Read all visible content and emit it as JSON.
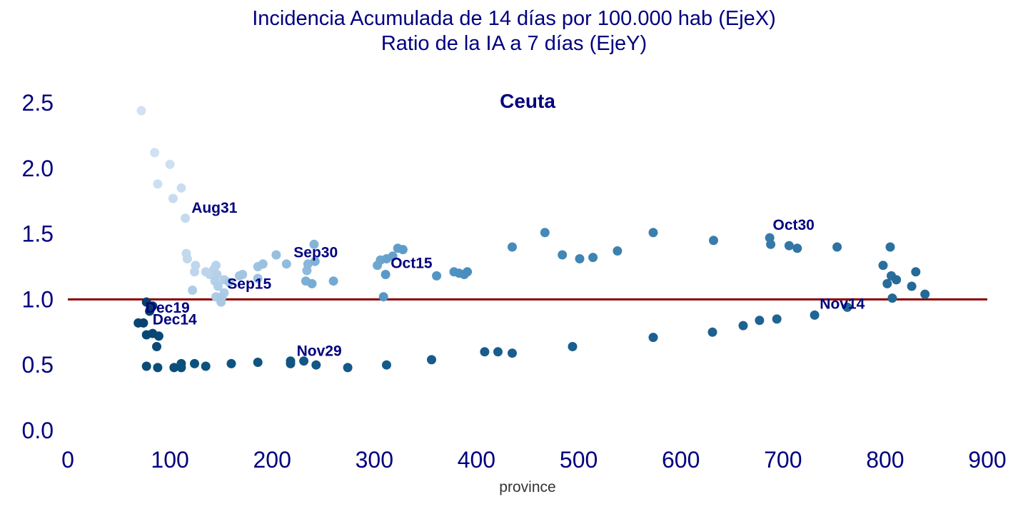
{
  "chart_data": {
    "type": "scatter",
    "title_lines": [
      "Incidencia Acumulada de 14 días por 100.000 hab (EjeX)",
      "Ratio de la IA a 7 días (EjeY)"
    ],
    "subtitle": "Ceuta",
    "xlabel": "province",
    "ylabel": "",
    "xlim": [
      0,
      900
    ],
    "ylim": [
      0,
      2.65
    ],
    "x_ticks": [
      0,
      100,
      200,
      300,
      400,
      500,
      600,
      700,
      800,
      900
    ],
    "y_ticks": [
      0.0,
      0.5,
      1.0,
      1.5,
      2.0,
      2.5
    ],
    "y_tick_labels": [
      "0.0",
      "0.5",
      "1.0",
      "1.5",
      "2.0",
      "2.5"
    ],
    "grid": false,
    "reference_line": {
      "y": 1.0,
      "color": "#8b0000"
    },
    "colors": {
      "text": "#000080",
      "early": "#c6dbef",
      "mid": "#4a98c9",
      "late": "#1764ab",
      "latest": "#08306b"
    },
    "points": [
      {
        "x": 72,
        "y": 2.44,
        "c": "#d1e2f3"
      },
      {
        "x": 85,
        "y": 2.12,
        "c": "#cfe1f2"
      },
      {
        "x": 100,
        "y": 2.03,
        "c": "#cde0f1"
      },
      {
        "x": 88,
        "y": 1.88,
        "c": "#cbdff1"
      },
      {
        "x": 111,
        "y": 1.85,
        "c": "#c9ddf0"
      },
      {
        "x": 103,
        "y": 1.77,
        "c": "#c7dcef"
      },
      {
        "x": 115,
        "y": 1.62,
        "c": "#c5daee"
      },
      {
        "x": 116,
        "y": 1.35,
        "c": "#c3d9ee"
      },
      {
        "x": 117,
        "y": 1.31,
        "c": "#c1d8ed"
      },
      {
        "x": 125,
        "y": 1.26,
        "c": "#bfd7ed"
      },
      {
        "x": 124,
        "y": 1.21,
        "c": "#bed6ec"
      },
      {
        "x": 135,
        "y": 1.21,
        "c": "#bcd5ec"
      },
      {
        "x": 139,
        "y": 1.19,
        "c": "#bad4eb"
      },
      {
        "x": 145,
        "y": 1.26,
        "c": "#b8d3eb"
      },
      {
        "x": 143,
        "y": 1.23,
        "c": "#b7d2ea"
      },
      {
        "x": 146,
        "y": 1.19,
        "c": "#b5d1e9"
      },
      {
        "x": 144,
        "y": 1.14,
        "c": "#b3d0e9"
      },
      {
        "x": 153,
        "y": 1.15,
        "c": "#b1cfe8"
      },
      {
        "x": 147,
        "y": 1.1,
        "c": "#b0cee8"
      },
      {
        "x": 122,
        "y": 1.07,
        "c": "#aecde7"
      },
      {
        "x": 153,
        "y": 1.05,
        "c": "#accce7"
      },
      {
        "x": 145,
        "y": 1.02,
        "c": "#abcbe6"
      },
      {
        "x": 151,
        "y": 1.02,
        "c": "#a9cae6"
      },
      {
        "x": 150,
        "y": 0.98,
        "c": "#a7c9e5"
      },
      {
        "x": 158,
        "y": 1.13,
        "c": "#a5c8e4"
      },
      {
        "x": 168,
        "y": 1.18,
        "c": "#a3c6e3"
      },
      {
        "x": 171,
        "y": 1.19,
        "c": "#a1c5e2"
      },
      {
        "x": 186,
        "y": 1.25,
        "c": "#9fc4e1"
      },
      {
        "x": 186,
        "y": 1.16,
        "c": "#9dc3e0"
      },
      {
        "x": 191,
        "y": 1.27,
        "c": "#9ac1df"
      },
      {
        "x": 204,
        "y": 1.34,
        "c": "#96bfde"
      },
      {
        "x": 214,
        "y": 1.27,
        "c": "#92bcdc"
      },
      {
        "x": 234,
        "y": 1.22,
        "c": "#8db9db"
      },
      {
        "x": 235,
        "y": 1.27,
        "c": "#89b6d9"
      },
      {
        "x": 241,
        "y": 1.42,
        "c": "#84b4d8"
      },
      {
        "x": 242,
        "y": 1.29,
        "c": "#80b1d6"
      },
      {
        "x": 233,
        "y": 1.14,
        "c": "#7cafd5"
      },
      {
        "x": 239,
        "y": 1.12,
        "c": "#78acd3"
      },
      {
        "x": 260,
        "y": 1.14,
        "c": "#74aad2"
      },
      {
        "x": 303,
        "y": 1.26,
        "c": "#70a7d0"
      },
      {
        "x": 306,
        "y": 1.3,
        "c": "#6ca5ce"
      },
      {
        "x": 312,
        "y": 1.31,
        "c": "#68a2cc"
      },
      {
        "x": 318,
        "y": 1.33,
        "c": "#64a0cb"
      },
      {
        "x": 323,
        "y": 1.39,
        "c": "#609ec9"
      },
      {
        "x": 328,
        "y": 1.38,
        "c": "#5c9cc8"
      },
      {
        "x": 311,
        "y": 1.19,
        "c": "#5999c6"
      },
      {
        "x": 309,
        "y": 1.02,
        "c": "#5597c4"
      },
      {
        "x": 361,
        "y": 1.18,
        "c": "#5295c3"
      },
      {
        "x": 378,
        "y": 1.21,
        "c": "#4f93c1"
      },
      {
        "x": 383,
        "y": 1.2,
        "c": "#4c91bf"
      },
      {
        "x": 388,
        "y": 1.19,
        "c": "#4a8fbd"
      },
      {
        "x": 391,
        "y": 1.21,
        "c": "#488dbb"
      },
      {
        "x": 435,
        "y": 1.4,
        "c": "#468bb9"
      },
      {
        "x": 467,
        "y": 1.51,
        "c": "#4489b7"
      },
      {
        "x": 484,
        "y": 1.34,
        "c": "#4287b5"
      },
      {
        "x": 501,
        "y": 1.31,
        "c": "#4085b3"
      },
      {
        "x": 514,
        "y": 1.32,
        "c": "#3e83b1"
      },
      {
        "x": 538,
        "y": 1.37,
        "c": "#3c81af"
      },
      {
        "x": 573,
        "y": 1.51,
        "c": "#3a7fad"
      },
      {
        "x": 632,
        "y": 1.45,
        "c": "#387dab"
      },
      {
        "x": 687,
        "y": 1.47,
        "c": "#367ba9"
      },
      {
        "x": 688,
        "y": 1.42,
        "c": "#3479a7"
      },
      {
        "x": 706,
        "y": 1.41,
        "c": "#3277a5"
      },
      {
        "x": 714,
        "y": 1.39,
        "c": "#3075a3"
      },
      {
        "x": 753,
        "y": 1.4,
        "c": "#2e73a1"
      },
      {
        "x": 805,
        "y": 1.4,
        "c": "#2c719f"
      },
      {
        "x": 798,
        "y": 1.26,
        "c": "#2a6f9d"
      },
      {
        "x": 806,
        "y": 1.18,
        "c": "#296e9c"
      },
      {
        "x": 802,
        "y": 1.12,
        "c": "#276c9a"
      },
      {
        "x": 811,
        "y": 1.15,
        "c": "#266b99"
      },
      {
        "x": 830,
        "y": 1.21,
        "c": "#256a98"
      },
      {
        "x": 826,
        "y": 1.1,
        "c": "#246997"
      },
      {
        "x": 839,
        "y": 1.04,
        "c": "#236896"
      },
      {
        "x": 807,
        "y": 1.01,
        "c": "#226795"
      },
      {
        "x": 763,
        "y": 0.94,
        "c": "#216694"
      },
      {
        "x": 731,
        "y": 0.88,
        "c": "#206593"
      },
      {
        "x": 694,
        "y": 0.85,
        "c": "#1f6492"
      },
      {
        "x": 677,
        "y": 0.84,
        "c": "#1e6391"
      },
      {
        "x": 661,
        "y": 0.8,
        "c": "#1d6290"
      },
      {
        "x": 631,
        "y": 0.75,
        "c": "#1c618f"
      },
      {
        "x": 573,
        "y": 0.71,
        "c": "#1b608e"
      },
      {
        "x": 494,
        "y": 0.64,
        "c": "#1a5f8d"
      },
      {
        "x": 435,
        "y": 0.59,
        "c": "#195e8c"
      },
      {
        "x": 421,
        "y": 0.6,
        "c": "#185d8b"
      },
      {
        "x": 408,
        "y": 0.6,
        "c": "#175c8a"
      },
      {
        "x": 356,
        "y": 0.54,
        "c": "#165b89"
      },
      {
        "x": 312,
        "y": 0.5,
        "c": "#155a88"
      },
      {
        "x": 274,
        "y": 0.48,
        "c": "#145987"
      },
      {
        "x": 243,
        "y": 0.5,
        "c": "#135886"
      },
      {
        "x": 231,
        "y": 0.53,
        "c": "#125784"
      },
      {
        "x": 218,
        "y": 0.53,
        "c": "#115683"
      },
      {
        "x": 218,
        "y": 0.51,
        "c": "#105582"
      },
      {
        "x": 186,
        "y": 0.52,
        "c": "#0f5481"
      },
      {
        "x": 160,
        "y": 0.51,
        "c": "#0e5380"
      },
      {
        "x": 135,
        "y": 0.49,
        "c": "#0d527f"
      },
      {
        "x": 124,
        "y": 0.51,
        "c": "#0c517e"
      },
      {
        "x": 111,
        "y": 0.51,
        "c": "#0b507d"
      },
      {
        "x": 111,
        "y": 0.48,
        "c": "#0b4f7b"
      },
      {
        "x": 104,
        "y": 0.48,
        "c": "#0a4e7a"
      },
      {
        "x": 88,
        "y": 0.48,
        "c": "#0a4d79"
      },
      {
        "x": 77,
        "y": 0.49,
        "c": "#094c78"
      },
      {
        "x": 87,
        "y": 0.64,
        "c": "#094a77"
      },
      {
        "x": 89,
        "y": 0.72,
        "c": "#084975"
      },
      {
        "x": 77,
        "y": 0.73,
        "c": "#084874"
      },
      {
        "x": 83,
        "y": 0.74,
        "c": "#084673"
      },
      {
        "x": 69,
        "y": 0.82,
        "c": "#084571"
      },
      {
        "x": 74,
        "y": 0.82,
        "c": "#08436f"
      },
      {
        "x": 80,
        "y": 0.91,
        "c": "#08426d"
      },
      {
        "x": 83,
        "y": 0.95,
        "c": "#08406b"
      },
      {
        "x": 77,
        "y": 0.98,
        "c": "#083e69"
      },
      {
        "x": 81,
        "y": 0.94,
        "c": "#083c67"
      }
    ],
    "annotations": [
      {
        "text": "Aug31",
        "x": 121,
        "y": 1.66
      },
      {
        "text": "Sep30",
        "x": 221,
        "y": 1.32
      },
      {
        "text": "Sep15",
        "x": 156,
        "y": 1.08
      },
      {
        "text": "Oct15",
        "x": 316,
        "y": 1.24
      },
      {
        "text": "Oct30",
        "x": 690,
        "y": 1.53
      },
      {
        "text": "Nov14",
        "x": 736,
        "y": 0.93
      },
      {
        "text": "Nov29",
        "x": 224,
        "y": 0.57
      },
      {
        "text": "Dec19",
        "x": 76,
        "y": 0.9
      },
      {
        "text": "Dec14",
        "x": 83,
        "y": 0.81
      }
    ]
  }
}
